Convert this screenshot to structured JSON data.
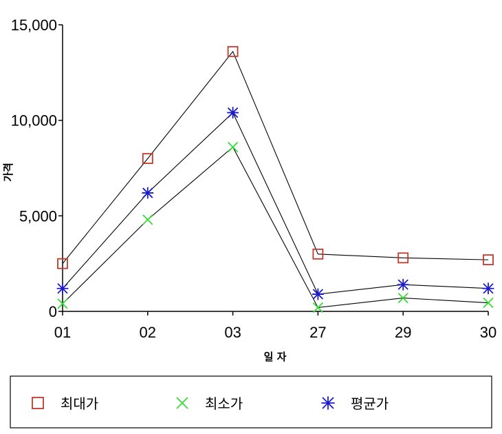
{
  "chart_data": {
    "type": "line",
    "xlabel": "일 자",
    "ylabel": "가격",
    "categories": [
      "01",
      "02",
      "03",
      "27",
      "29",
      "30"
    ],
    "ylim": [
      0,
      15000
    ],
    "yticks": [
      0,
      5000,
      10000,
      15000
    ],
    "ytick_labels": [
      "0",
      "5,000",
      "10,000",
      "15,000"
    ],
    "grid": false,
    "legend_position": "bottom",
    "series": [
      {
        "name": "최대가",
        "marker": "square",
        "color": "#c0392b",
        "values": [
          2500,
          8000,
          13600,
          3000,
          2800,
          2700
        ]
      },
      {
        "name": "최소가",
        "marker": "x",
        "color": "#33dd33",
        "values": [
          400,
          4800,
          8600,
          200,
          700,
          450
        ]
      },
      {
        "name": "평균가",
        "marker": "asterisk",
        "color": "#1a1acc",
        "values": [
          1200,
          6200,
          10400,
          900,
          1400,
          1200
        ]
      }
    ]
  }
}
